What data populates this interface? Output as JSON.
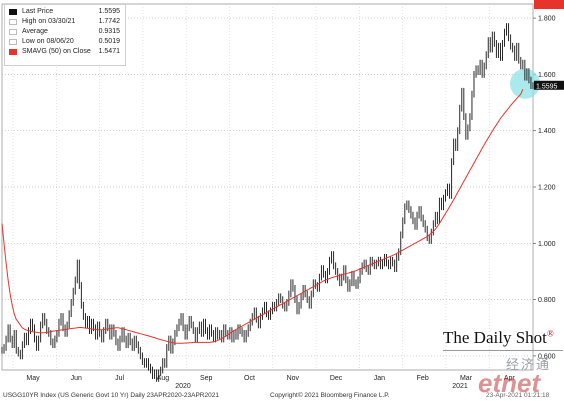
{
  "chart_data": {
    "type": "line",
    "series": [
      {
        "name": "Last Price",
        "color": "#111111",
        "values": [
          0.62,
          0.63,
          0.66,
          0.7,
          0.66,
          0.64,
          0.68,
          0.62,
          0.61,
          0.6,
          0.64,
          0.67,
          0.65,
          0.69,
          0.72,
          0.7,
          0.66,
          0.63,
          0.66,
          0.71,
          0.74,
          0.72,
          0.69,
          0.68,
          0.65,
          0.64,
          0.66,
          0.68,
          0.72,
          0.74,
          0.7,
          0.68,
          0.71,
          0.75,
          0.79,
          0.83,
          0.87,
          0.93,
          0.85,
          0.78,
          0.74,
          0.71,
          0.73,
          0.69,
          0.72,
          0.7,
          0.67,
          0.71,
          0.68,
          0.66,
          0.69,
          0.72,
          0.7,
          0.67,
          0.7,
          0.68,
          0.65,
          0.63,
          0.66,
          0.69,
          0.66,
          0.64,
          0.67,
          0.65,
          0.63,
          0.66,
          0.64,
          0.62,
          0.6,
          0.58,
          0.57,
          0.58,
          0.56,
          0.55,
          0.53,
          0.54,
          0.52,
          0.54,
          0.55,
          0.58,
          0.57,
          0.63,
          0.66,
          0.62,
          0.65,
          0.68,
          0.7,
          0.72,
          0.74,
          0.7,
          0.67,
          0.7,
          0.73,
          0.71,
          0.69,
          0.66,
          0.69,
          0.71,
          0.68,
          0.72,
          0.69,
          0.67,
          0.7,
          0.68,
          0.66,
          0.69,
          0.67,
          0.68,
          0.66,
          0.7,
          0.68,
          0.67,
          0.69,
          0.66,
          0.68,
          0.67,
          0.7,
          0.69,
          0.68,
          0.66,
          0.68,
          0.7,
          0.72,
          0.74,
          0.76,
          0.73,
          0.71,
          0.74,
          0.76,
          0.78,
          0.75,
          0.74,
          0.76,
          0.78,
          0.77,
          0.79,
          0.81,
          0.8,
          0.78,
          0.77,
          0.79,
          0.82,
          0.86,
          0.84,
          0.8,
          0.76,
          0.78,
          0.81,
          0.84,
          0.82,
          0.8,
          0.78,
          0.82,
          0.86,
          0.85,
          0.84,
          0.88,
          0.91,
          0.89,
          0.87,
          0.9,
          0.94,
          0.96,
          0.92,
          0.9,
          0.88,
          0.86,
          0.88,
          0.91,
          0.87,
          0.84,
          0.86,
          0.89,
          0.86,
          0.85,
          0.87,
          0.9,
          0.92,
          0.93,
          0.91,
          0.9,
          0.94,
          0.93,
          0.92,
          0.93,
          0.94,
          0.92,
          0.93,
          0.95,
          0.93,
          0.92,
          0.94,
          0.93,
          0.91,
          0.95,
          0.97,
          1.03,
          1.08,
          1.13,
          1.14,
          1.12,
          1.1,
          1.08,
          1.06,
          1.1,
          1.12,
          1.09,
          1.07,
          1.05,
          1.02,
          1.01,
          1.04,
          1.07,
          1.1,
          1.08,
          1.15,
          1.13,
          1.16,
          1.18,
          1.2,
          1.17,
          1.29,
          1.36,
          1.34,
          1.4,
          1.48,
          1.54,
          1.45,
          1.38,
          1.41,
          1.45,
          1.53,
          1.6,
          1.62,
          1.61,
          1.64,
          1.6,
          1.63,
          1.67,
          1.72,
          1.69,
          1.74,
          1.71,
          1.67,
          1.7,
          1.66,
          1.71,
          1.75,
          1.77,
          1.73,
          1.7,
          1.69,
          1.66,
          1.7,
          1.65,
          1.63,
          1.64,
          1.59,
          1.61,
          1.58,
          1.56,
          1.5595
        ]
      },
      {
        "name": "SMAVG (50)  on Close",
        "color": "#e8332b",
        "values": [
          1.07,
          1.0,
          0.93,
          0.87,
          0.82,
          0.78,
          0.75,
          0.73,
          0.72,
          0.71,
          0.7,
          0.695,
          0.692,
          0.69,
          0.688,
          0.686,
          0.685,
          0.684,
          0.683,
          0.682,
          0.682,
          0.683,
          0.684,
          0.685,
          0.686,
          0.688,
          0.689,
          0.69,
          0.691,
          0.692,
          0.693,
          0.694,
          0.695,
          0.696,
          0.697,
          0.698,
          0.699,
          0.7,
          0.701,
          0.701,
          0.7,
          0.699,
          0.698,
          0.697,
          0.696,
          0.695,
          0.694,
          0.693,
          0.693,
          0.693,
          0.694,
          0.695,
          0.696,
          0.697,
          0.698,
          0.699,
          0.7,
          0.7,
          0.699,
          0.697,
          0.695,
          0.693,
          0.691,
          0.689,
          0.687,
          0.685,
          0.683,
          0.681,
          0.679,
          0.677,
          0.675,
          0.673,
          0.671,
          0.669,
          0.667,
          0.665,
          0.662,
          0.66,
          0.658,
          0.656,
          0.654,
          0.652,
          0.65,
          0.648,
          0.647,
          0.646,
          0.645,
          0.645,
          0.645,
          0.645,
          0.646,
          0.646,
          0.647,
          0.647,
          0.648,
          0.648,
          0.648,
          0.648,
          0.648,
          0.648,
          0.648,
          0.648,
          0.648,
          0.649,
          0.65,
          0.652,
          0.655,
          0.658,
          0.662,
          0.666,
          0.67,
          0.675,
          0.68,
          0.685,
          0.69,
          0.694,
          0.698,
          0.702,
          0.706,
          0.71,
          0.714,
          0.718,
          0.722,
          0.726,
          0.73,
          0.734,
          0.738,
          0.742,
          0.746,
          0.75,
          0.754,
          0.758,
          0.762,
          0.766,
          0.77,
          0.774,
          0.778,
          0.782,
          0.786,
          0.79,
          0.794,
          0.798,
          0.802,
          0.806,
          0.81,
          0.814,
          0.818,
          0.822,
          0.826,
          0.83,
          0.834,
          0.838,
          0.842,
          0.846,
          0.85,
          0.854,
          0.858,
          0.862,
          0.866,
          0.869,
          0.872,
          0.875,
          0.878,
          0.88,
          0.882,
          0.884,
          0.886,
          0.888,
          0.89,
          0.892,
          0.894,
          0.896,
          0.898,
          0.9,
          0.903,
          0.906,
          0.909,
          0.912,
          0.915,
          0.918,
          0.921,
          0.924,
          0.927,
          0.93,
          0.933,
          0.936,
          0.939,
          0.942,
          0.945,
          0.948,
          0.951,
          0.954,
          0.957,
          0.96,
          0.964,
          0.968,
          0.972,
          0.976,
          0.98,
          0.984,
          0.988,
          0.992,
          0.996,
          1.0,
          1.004,
          1.008,
          1.012,
          1.016,
          1.02,
          1.024,
          1.03,
          1.036,
          1.042,
          1.05,
          1.06,
          1.07,
          1.082,
          1.094,
          1.106,
          1.118,
          1.13,
          1.142,
          1.155,
          1.168,
          1.181,
          1.194,
          1.207,
          1.22,
          1.233,
          1.246,
          1.259,
          1.272,
          1.285,
          1.298,
          1.311,
          1.324,
          1.337,
          1.35,
          1.362,
          1.374,
          1.386,
          1.398,
          1.41,
          1.421,
          1.432,
          1.443,
          1.453,
          1.462,
          1.471,
          1.48,
          1.489,
          1.498,
          1.506,
          1.514,
          1.522,
          1.53,
          1.5471
        ]
      }
    ],
    "ylim": [
      0.55,
      1.85
    ],
    "y_ticks": [
      "0.600",
      "0.800",
      "1.000",
      "1.200",
      "1.400",
      "1.600",
      "1.800"
    ],
    "x_month_labels": [
      "May",
      "Jun",
      "Jul",
      "Aug",
      "Sep",
      "Oct",
      "Nov",
      "Dec",
      "Jan",
      "Feb",
      "Mar",
      "Apr"
    ],
    "x_year_labels": [
      "2020",
      "2021"
    ],
    "last_price_tag": "1.5595",
    "sma_price_tag": "1.5471",
    "grid": true,
    "legend_position": "top-left",
    "highlight_circle_color": "#8fe3e6"
  },
  "legend": {
    "rows": [
      {
        "label": "Last Price",
        "value": "1.5595",
        "color": "#111111"
      },
      {
        "label": "High on 03/30/21",
        "value": "1.7742",
        "color": "#bbbbbb"
      },
      {
        "label": "Average",
        "value": "0.9315",
        "color": "#bbbbbb"
      },
      {
        "label": "Low on 08/06/20",
        "value": "0.5019",
        "color": "#bbbbbb"
      },
      {
        "label": "SMAVG (50)  on Close",
        "value": "1.5471",
        "color": "#e8332b"
      }
    ]
  },
  "footer": {
    "left": "USGG10YR Index (US Generic Govt 10 Yr)  Daily 23APR2020-23APR2021",
    "right": "Copyright© 2021 Bloomberg Finance L.P.",
    "stamp": "23-Apr-2021 01:21:18"
  },
  "brand": {
    "name": "The Daily Shot",
    "mark": "®",
    "watermark_cn": "经济通",
    "watermark_en": "etnet"
  }
}
